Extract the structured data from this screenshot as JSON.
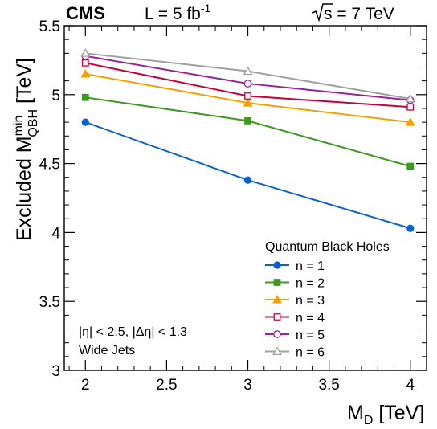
{
  "chart_data": {
    "type": "line",
    "header": {
      "experiment": "CMS",
      "lumi_prefix": "L = 5 fb",
      "lumi_exp": "-1",
      "energy_prefix": "s = 7 TeV"
    },
    "ylabel": {
      "main": "Excluded M",
      "sup": "min",
      "sub": "QBH",
      "unit": " [TeV]"
    },
    "xlabel": {
      "main": "M",
      "sub": "D",
      "unit": " [TeV]"
    },
    "xlim": [
      1.87,
      4.1
    ],
    "ylim": [
      3.0,
      5.5
    ],
    "xticks": [
      "2",
      "2.5",
      "3",
      "3.5",
      "4"
    ],
    "yticks": [
      "3",
      "3.5",
      "4",
      "4.5",
      "5",
      "5.5"
    ],
    "x": [
      2,
      3,
      4
    ],
    "legend_title": "Quantum Black Holes",
    "legend_placement": "bottom-right",
    "annotations": [
      "|η| < 2.5, |Δη| < 1.3",
      "Wide Jets"
    ],
    "series": [
      {
        "name": "n = 1",
        "values": [
          4.8,
          4.38,
          4.03
        ],
        "color": "#0b63c9",
        "marker": "filled-circle"
      },
      {
        "name": "n = 2",
        "values": [
          4.98,
          4.81,
          4.48
        ],
        "color": "#3c9a1c",
        "marker": "filled-square"
      },
      {
        "name": "n = 3",
        "values": [
          5.15,
          4.94,
          4.8
        ],
        "color": "#f5a000",
        "marker": "filled-triangle"
      },
      {
        "name": "n = 4",
        "values": [
          5.23,
          4.99,
          4.91
        ],
        "color": "#c8003c",
        "marker": "open-square"
      },
      {
        "name": "n = 5",
        "values": [
          5.28,
          5.08,
          4.96
        ],
        "color": "#9c1f9c",
        "marker": "open-circle"
      },
      {
        "name": "n = 6",
        "values": [
          5.3,
          5.17,
          4.97
        ],
        "color": "#a0a0a0",
        "marker": "open-triangle"
      }
    ]
  }
}
